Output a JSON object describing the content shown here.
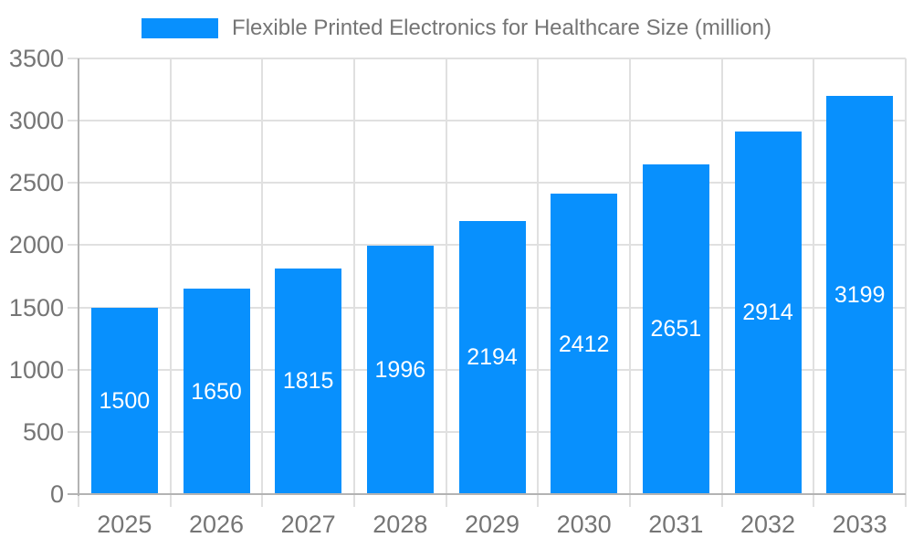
{
  "legend": {
    "label": "Flexible Printed Electronics for Healthcare Size (million)"
  },
  "colors": {
    "bar": "#0890fd",
    "axis_line": "#b3b3b3",
    "gridline": "#e0e0e0",
    "tick": "#e0e0e0",
    "axis_text": "#757575",
    "value_label_text": "#ffffff",
    "background": "#ffffff"
  },
  "chart_data": {
    "type": "bar",
    "title": "Flexible Printed Electronics for Healthcare Size (million)",
    "categories": [
      "2025",
      "2026",
      "2027",
      "2028",
      "2029",
      "2030",
      "2031",
      "2032",
      "2033"
    ],
    "values": [
      1500,
      1650,
      1815,
      1996,
      2194,
      2412,
      2651,
      2914,
      3199
    ],
    "series": [
      {
        "name": "Flexible Printed Electronics for Healthcare Size (million)",
        "values": [
          1500,
          1650,
          1815,
          1996,
          2194,
          2412,
          2651,
          2914,
          3199
        ]
      }
    ],
    "xlabel": "",
    "ylabel": "",
    "ylim": [
      0,
      3500
    ],
    "yticks": [
      0,
      500,
      1000,
      1500,
      2000,
      2500,
      3000,
      3500
    ],
    "grid": "horizontal and vertical light gray gridlines",
    "legend_position": "top-center",
    "value_labels_position": "inside-center"
  }
}
